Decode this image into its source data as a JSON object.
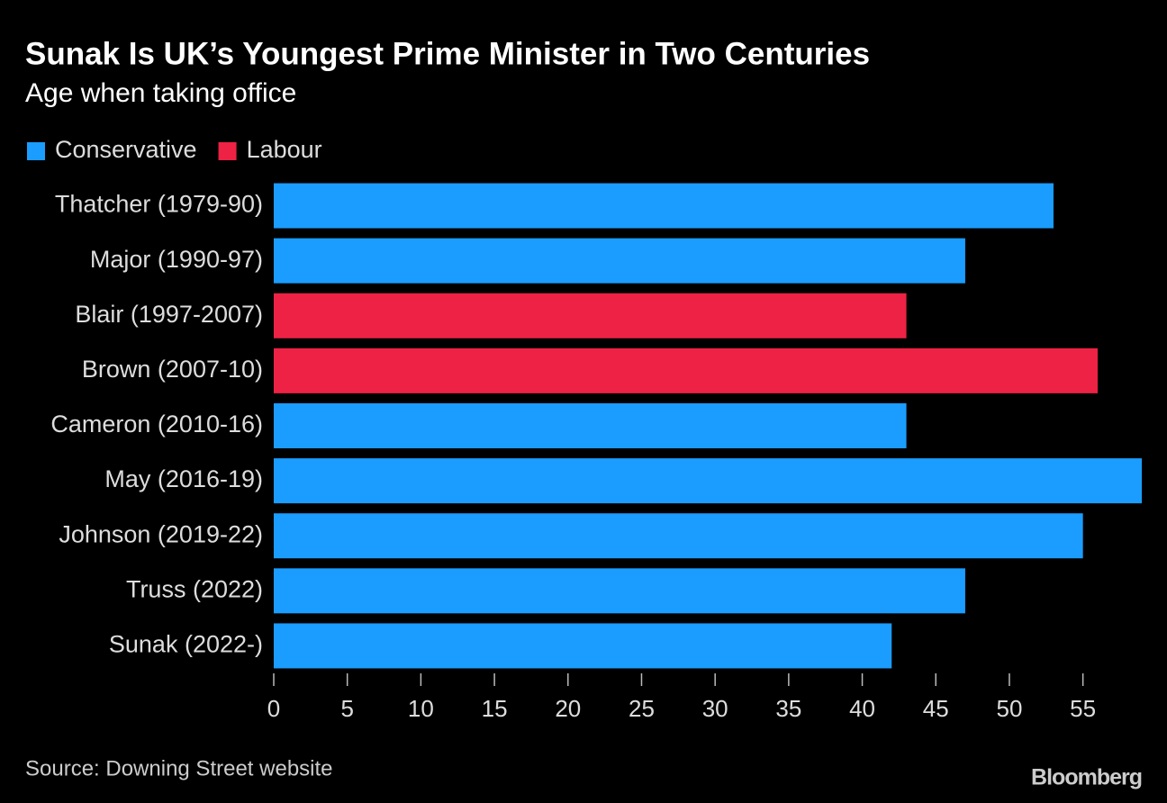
{
  "chart_data": {
    "type": "hbar",
    "title": "Sunak Is UK’s Youngest Prime Minister in Two Centuries",
    "subtitle": "Age when taking office",
    "categories": [
      "Thatcher (1979-90)",
      "Major (1990-97)",
      "Blair (1997-2007)",
      "Brown (2007-10)",
      "Cameron (2010-16)",
      "May (2016-19)",
      "Johnson (2019-22)",
      "Truss (2022)",
      "Sunak (2022-)"
    ],
    "series": [
      {
        "name": "Conservative",
        "color": "#1a9dff",
        "values": [
          53,
          47,
          null,
          null,
          43,
          59,
          55,
          47,
          42
        ]
      },
      {
        "name": "Labour",
        "color": "#ee2244",
        "values": [
          null,
          null,
          43,
          56,
          null,
          null,
          null,
          null,
          null
        ]
      }
    ],
    "xlim": [
      0,
      59
    ],
    "xticks": [
      0,
      5,
      10,
      15,
      20,
      25,
      30,
      35,
      40,
      45,
      50,
      55
    ],
    "legend": "top-left",
    "source": "Source: Downing Street website",
    "credit": "Bloomberg"
  }
}
